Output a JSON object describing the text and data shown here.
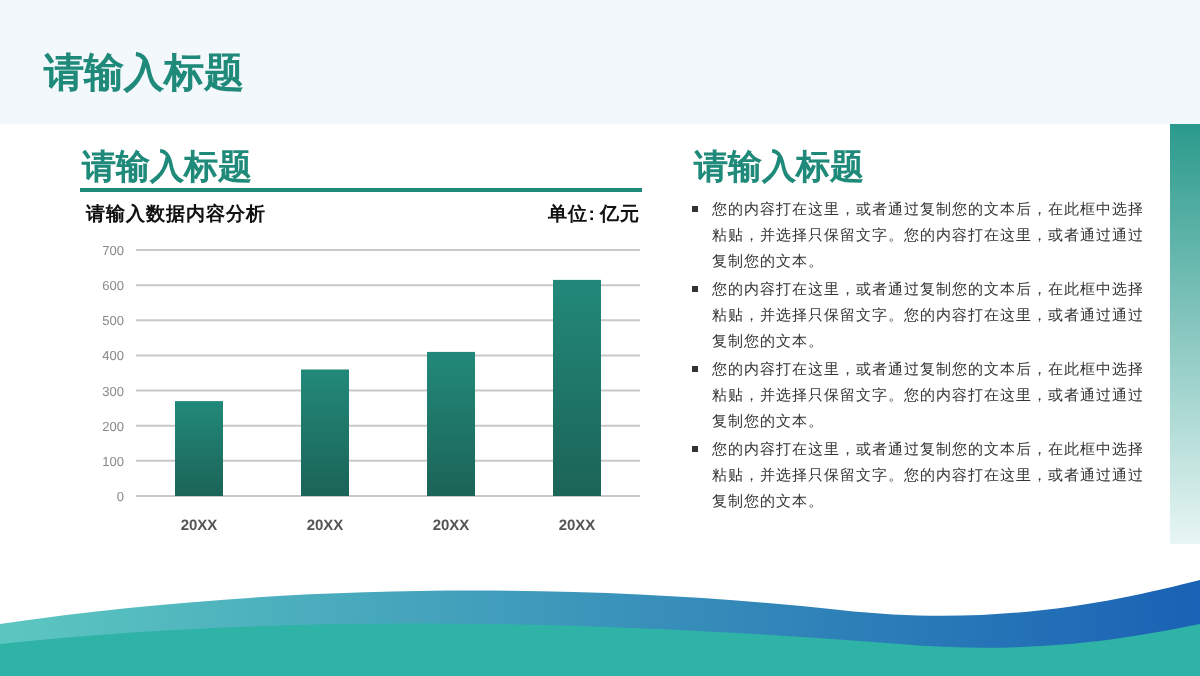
{
  "chart_data": [
    {
      "type": "other",
      "title": "请输入标题"
    },
    {
      "type": "bar",
      "title": "请输入标题",
      "subtitle": "请输入数据内容分析",
      "annotations": [
        "单位: 亿元"
      ],
      "categories": [
        "20XX",
        "20XX",
        "20XX",
        "20XX"
      ],
      "values": [
        270,
        360,
        410,
        615
      ],
      "color": "#22897a",
      "ylim": [
        0,
        700
      ],
      "yticks": [
        0,
        100,
        200,
        300,
        400,
        500,
        600,
        700
      ],
      "grid": "y"
    },
    {
      "type": "other",
      "title": "请输入标题",
      "annotations": [
        "您的内容打在这里，或者通过复制您的文本后，在此框中选择粘贴，并选择只保留文字。您的内容打在这里，或者通过通过复制您的文本。",
        "您的内容打在这里，或者通过复制您的文本后，在此框中选择粘贴，并选择只保留文字。您的内容打在这里，或者通过通过复制您的文本。",
        "您的内容打在这里，或者通过复制您的文本后，在此框中选择粘贴，并选择只保留文字。您的内容打在这里，或者通过通过复制您的文本。",
        "您的内容打在这里，或者通过复制您的文本后，在此框中选择粘贴，并选择只保留文字。您的内容打在这里，或者通过通过复制您的文本。"
      ]
    }
  ]
}
